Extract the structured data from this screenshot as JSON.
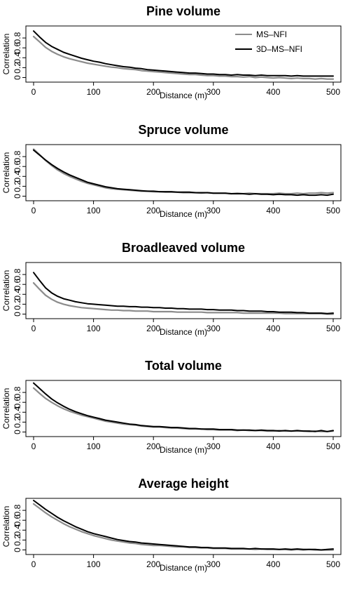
{
  "colors": {
    "ms_nfi": "#8c8c8c",
    "3d_ms_nfi": "#000000"
  },
  "legend": {
    "placement": "top-right",
    "entries": [
      {
        "key": "ms_nfi",
        "label": "MS–NFI"
      },
      {
        "key": "3d_ms_nfi",
        "label": "3D–MS–NFI"
      }
    ]
  },
  "chart_data": [
    {
      "type": "line",
      "title": "Pine volume",
      "xlabel": "Distance (m)",
      "ylabel": "Correlation",
      "xlim": [
        0,
        500
      ],
      "ylim": [
        -0.05,
        1.0
      ],
      "xticks": [
        0,
        100,
        200,
        300,
        400,
        500
      ],
      "yticks": [
        0,
        0.2,
        0.4,
        0.6,
        0.8
      ],
      "x": [
        0,
        10,
        20,
        30,
        40,
        50,
        60,
        70,
        80,
        90,
        100,
        110,
        120,
        130,
        140,
        150,
        160,
        170,
        180,
        190,
        200,
        210,
        220,
        230,
        240,
        250,
        260,
        270,
        280,
        290,
        300,
        310,
        320,
        330,
        340,
        350,
        360,
        370,
        380,
        390,
        400,
        410,
        420,
        430,
        440,
        450,
        460,
        470,
        480,
        490,
        500
      ],
      "series": [
        {
          "name": "MS–NFI",
          "key": "ms_nfi",
          "values": [
            0.83,
            0.72,
            0.61,
            0.53,
            0.47,
            0.42,
            0.38,
            0.35,
            0.32,
            0.29,
            0.27,
            0.25,
            0.23,
            0.21,
            0.2,
            0.18,
            0.17,
            0.16,
            0.14,
            0.13,
            0.12,
            0.11,
            0.1,
            0.09,
            0.08,
            0.07,
            0.06,
            0.06,
            0.05,
            0.04,
            0.04,
            0.03,
            0.03,
            0.02,
            0.02,
            0.01,
            0.02,
            0.0,
            0.01,
            0.0,
            -0.01,
            0.0,
            -0.01,
            -0.02,
            -0.01,
            -0.02,
            -0.02,
            -0.03,
            -0.02,
            -0.03,
            -0.03
          ]
        },
        {
          "name": "3D–MS–NFI",
          "key": "3d_ms_nfi",
          "values": [
            0.94,
            0.82,
            0.71,
            0.63,
            0.57,
            0.51,
            0.47,
            0.43,
            0.39,
            0.36,
            0.33,
            0.31,
            0.28,
            0.26,
            0.24,
            0.22,
            0.21,
            0.19,
            0.18,
            0.16,
            0.15,
            0.14,
            0.13,
            0.12,
            0.11,
            0.1,
            0.09,
            0.09,
            0.08,
            0.07,
            0.07,
            0.06,
            0.06,
            0.05,
            0.06,
            0.05,
            0.05,
            0.04,
            0.05,
            0.04,
            0.04,
            0.04,
            0.04,
            0.03,
            0.04,
            0.03,
            0.03,
            0.03,
            0.03,
            0.03,
            0.03
          ]
        }
      ]
    },
    {
      "type": "line",
      "title": "Spruce volume",
      "xlabel": "Distance (m)",
      "ylabel": "Correlation",
      "xlim": [
        0,
        500
      ],
      "ylim": [
        -0.05,
        1.0
      ],
      "xticks": [
        0,
        100,
        200,
        300,
        400,
        500
      ],
      "yticks": [
        0,
        0.2,
        0.4,
        0.6,
        0.8
      ],
      "x": [
        0,
        10,
        20,
        30,
        40,
        50,
        60,
        70,
        80,
        90,
        100,
        110,
        120,
        130,
        140,
        150,
        160,
        170,
        180,
        190,
        200,
        210,
        220,
        230,
        240,
        250,
        260,
        270,
        280,
        290,
        300,
        310,
        320,
        330,
        340,
        350,
        360,
        370,
        380,
        390,
        400,
        410,
        420,
        430,
        440,
        450,
        460,
        470,
        480,
        490,
        500
      ],
      "series": [
        {
          "name": "MS–NFI",
          "key": "ms_nfi",
          "values": [
            0.95,
            0.84,
            0.72,
            0.62,
            0.53,
            0.46,
            0.4,
            0.35,
            0.3,
            0.26,
            0.23,
            0.2,
            0.17,
            0.15,
            0.14,
            0.13,
            0.12,
            0.11,
            0.1,
            0.1,
            0.09,
            0.09,
            0.08,
            0.08,
            0.08,
            0.07,
            0.07,
            0.07,
            0.06,
            0.07,
            0.06,
            0.06,
            0.06,
            0.05,
            0.06,
            0.05,
            0.06,
            0.05,
            0.05,
            0.05,
            0.05,
            0.06,
            0.05,
            0.05,
            0.06,
            0.05,
            0.06,
            0.06,
            0.07,
            0.06,
            0.07
          ]
        },
        {
          "name": "3D–MS–NFI",
          "key": "3d_ms_nfi",
          "values": [
            0.93,
            0.83,
            0.73,
            0.64,
            0.56,
            0.49,
            0.43,
            0.38,
            0.33,
            0.28,
            0.25,
            0.22,
            0.19,
            0.17,
            0.15,
            0.14,
            0.13,
            0.12,
            0.11,
            0.1,
            0.1,
            0.09,
            0.09,
            0.09,
            0.08,
            0.08,
            0.08,
            0.07,
            0.07,
            0.07,
            0.06,
            0.06,
            0.06,
            0.05,
            0.05,
            0.05,
            0.04,
            0.05,
            0.04,
            0.04,
            0.03,
            0.04,
            0.03,
            0.03,
            0.02,
            0.03,
            0.02,
            0.02,
            0.03,
            0.02,
            0.04
          ]
        }
      ]
    },
    {
      "type": "line",
      "title": "Broadleaved volume",
      "xlabel": "Distance (m)",
      "ylabel": "Correlation",
      "xlim": [
        0,
        500
      ],
      "ylim": [
        -0.05,
        1.0
      ],
      "xticks": [
        0,
        100,
        200,
        300,
        400,
        500
      ],
      "yticks": [
        0,
        0.2,
        0.4,
        0.6,
        0.8
      ],
      "x": [
        0,
        10,
        20,
        30,
        40,
        50,
        60,
        70,
        80,
        90,
        100,
        110,
        120,
        130,
        140,
        150,
        160,
        170,
        180,
        190,
        200,
        210,
        220,
        230,
        240,
        250,
        260,
        270,
        280,
        290,
        300,
        310,
        320,
        330,
        340,
        350,
        360,
        370,
        380,
        390,
        400,
        410,
        420,
        430,
        440,
        450,
        460,
        470,
        480,
        490,
        500
      ],
      "series": [
        {
          "name": "MS–NFI",
          "key": "ms_nfi",
          "values": [
            0.63,
            0.5,
            0.38,
            0.3,
            0.24,
            0.2,
            0.17,
            0.15,
            0.13,
            0.12,
            0.11,
            0.1,
            0.09,
            0.08,
            0.08,
            0.07,
            0.07,
            0.06,
            0.06,
            0.06,
            0.05,
            0.05,
            0.05,
            0.05,
            0.04,
            0.04,
            0.04,
            0.04,
            0.04,
            0.03,
            0.03,
            0.03,
            0.03,
            0.03,
            0.03,
            0.02,
            0.02,
            0.02,
            0.02,
            0.02,
            0.02,
            0.02,
            0.01,
            0.01,
            0.01,
            0.01,
            0.01,
            0.01,
            0.01,
            0.0,
            0.0
          ]
        },
        {
          "name": "3D–MS–NFI",
          "key": "3d_ms_nfi",
          "values": [
            0.84,
            0.68,
            0.53,
            0.43,
            0.36,
            0.31,
            0.28,
            0.25,
            0.23,
            0.21,
            0.2,
            0.19,
            0.18,
            0.17,
            0.16,
            0.16,
            0.15,
            0.15,
            0.14,
            0.14,
            0.13,
            0.13,
            0.12,
            0.12,
            0.11,
            0.11,
            0.1,
            0.1,
            0.1,
            0.09,
            0.09,
            0.08,
            0.08,
            0.08,
            0.07,
            0.07,
            0.06,
            0.06,
            0.06,
            0.05,
            0.05,
            0.04,
            0.04,
            0.04,
            0.03,
            0.03,
            0.02,
            0.02,
            0.02,
            0.01,
            0.02
          ]
        }
      ]
    },
    {
      "type": "line",
      "title": "Total volume",
      "xlabel": "Distance (m)",
      "ylabel": "Correlation",
      "xlim": [
        0,
        500
      ],
      "ylim": [
        -0.05,
        1.0
      ],
      "xticks": [
        0,
        100,
        200,
        300,
        400,
        500
      ],
      "yticks": [
        0,
        0.2,
        0.4,
        0.6,
        0.8
      ],
      "x": [
        0,
        10,
        20,
        30,
        40,
        50,
        60,
        70,
        80,
        90,
        100,
        110,
        120,
        130,
        140,
        150,
        160,
        170,
        180,
        190,
        200,
        210,
        220,
        230,
        240,
        250,
        260,
        270,
        280,
        290,
        300,
        310,
        320,
        330,
        340,
        350,
        360,
        370,
        380,
        390,
        400,
        410,
        420,
        430,
        440,
        450,
        460,
        470,
        480,
        490,
        500
      ],
      "series": [
        {
          "name": "MS–NFI",
          "key": "ms_nfi",
          "values": [
            0.89,
            0.78,
            0.68,
            0.6,
            0.53,
            0.47,
            0.42,
            0.38,
            0.34,
            0.31,
            0.28,
            0.25,
            0.22,
            0.2,
            0.18,
            0.16,
            0.15,
            0.14,
            0.12,
            0.11,
            0.1,
            0.1,
            0.09,
            0.08,
            0.08,
            0.07,
            0.06,
            0.06,
            0.06,
            0.05,
            0.05,
            0.04,
            0.04,
            0.04,
            0.03,
            0.04,
            0.03,
            0.03,
            0.03,
            0.02,
            0.02,
            0.03,
            0.02,
            0.02,
            0.02,
            0.02,
            0.01,
            0.02,
            0.01,
            0.01,
            0.02
          ]
        },
        {
          "name": "3D–MS–NFI",
          "key": "3d_ms_nfi",
          "values": [
            0.99,
            0.88,
            0.77,
            0.67,
            0.59,
            0.52,
            0.46,
            0.41,
            0.37,
            0.33,
            0.3,
            0.27,
            0.24,
            0.22,
            0.2,
            0.18,
            0.16,
            0.15,
            0.13,
            0.12,
            0.11,
            0.11,
            0.1,
            0.09,
            0.09,
            0.08,
            0.07,
            0.07,
            0.06,
            0.06,
            0.06,
            0.05,
            0.05,
            0.05,
            0.04,
            0.04,
            0.04,
            0.03,
            0.04,
            0.03,
            0.03,
            0.02,
            0.03,
            0.02,
            0.03,
            0.02,
            0.02,
            0.01,
            0.03,
            0.01,
            0.03
          ]
        }
      ]
    },
    {
      "type": "line",
      "title": "Average height",
      "xlabel": "Distance (m)",
      "ylabel": "Correlation",
      "xlim": [
        0,
        500
      ],
      "ylim": [
        -0.05,
        1.0
      ],
      "xticks": [
        0,
        100,
        200,
        300,
        400,
        500
      ],
      "yticks": [
        0,
        0.2,
        0.4,
        0.6,
        0.8
      ],
      "x": [
        0,
        10,
        20,
        30,
        40,
        50,
        60,
        70,
        80,
        90,
        100,
        110,
        120,
        130,
        140,
        150,
        160,
        170,
        180,
        190,
        200,
        210,
        220,
        230,
        240,
        250,
        260,
        270,
        280,
        290,
        300,
        310,
        320,
        330,
        340,
        350,
        360,
        370,
        380,
        390,
        400,
        410,
        420,
        430,
        440,
        450,
        460,
        470,
        480,
        490,
        500
      ],
      "series": [
        {
          "name": "MS–NFI",
          "key": "ms_nfi",
          "values": [
            0.93,
            0.84,
            0.75,
            0.67,
            0.6,
            0.53,
            0.47,
            0.42,
            0.37,
            0.33,
            0.29,
            0.26,
            0.23,
            0.2,
            0.18,
            0.16,
            0.14,
            0.13,
            0.11,
            0.1,
            0.09,
            0.09,
            0.08,
            0.07,
            0.06,
            0.06,
            0.05,
            0.05,
            0.04,
            0.04,
            0.03,
            0.03,
            0.03,
            0.02,
            0.02,
            0.02,
            0.02,
            0.01,
            0.02,
            0.01,
            0.01,
            0.01,
            0.01,
            0.0,
            0.01,
            0.0,
            0.01,
            0.0,
            0.0,
            0.0,
            0.0
          ]
        },
        {
          "name": "3D–MS–NFI",
          "key": "3d_ms_nfi",
          "values": [
            1.0,
            0.91,
            0.82,
            0.74,
            0.66,
            0.59,
            0.53,
            0.47,
            0.42,
            0.37,
            0.33,
            0.3,
            0.27,
            0.24,
            0.21,
            0.19,
            0.17,
            0.16,
            0.14,
            0.13,
            0.12,
            0.11,
            0.1,
            0.09,
            0.08,
            0.07,
            0.06,
            0.06,
            0.05,
            0.05,
            0.04,
            0.04,
            0.04,
            0.03,
            0.03,
            0.03,
            0.02,
            0.03,
            0.02,
            0.02,
            0.02,
            0.01,
            0.02,
            0.01,
            0.02,
            0.01,
            0.01,
            0.01,
            0.0,
            0.01,
            0.02
          ]
        }
      ]
    }
  ]
}
